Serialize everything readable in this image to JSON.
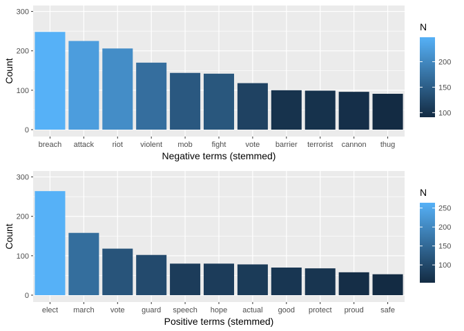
{
  "chart_data": [
    {
      "type": "bar",
      "title": "",
      "xlabel": "Negative terms (stemmed)",
      "ylabel": "Count",
      "categories": [
        "breach",
        "attack",
        "riot",
        "violent",
        "mob",
        "fight",
        "vote",
        "barrier",
        "terrorist",
        "cannon",
        "thug"
      ],
      "values": [
        248,
        225,
        206,
        170,
        144,
        142,
        118,
        100,
        99,
        96,
        91
      ],
      "ylim": [
        0,
        315
      ],
      "yticks": [
        0,
        100,
        200,
        300
      ],
      "grid": true,
      "legend": {
        "title": "N",
        "placement": "right",
        "ticks": [
          100,
          150,
          200
        ],
        "range": [
          91,
          248
        ]
      },
      "color_low": "#132B43",
      "color_high": "#56B1F7"
    },
    {
      "type": "bar",
      "title": "",
      "xlabel": "Positive terms (stemmed)",
      "ylabel": "Count",
      "categories": [
        "elect",
        "march",
        "vote",
        "guard",
        "speech",
        "hope",
        "actual",
        "good",
        "protect",
        "proud",
        "safe"
      ],
      "values": [
        264,
        158,
        118,
        102,
        80,
        80,
        78,
        70,
        68,
        58,
        53
      ],
      "ylim": [
        0,
        315
      ],
      "yticks": [
        0,
        100,
        200,
        300
      ],
      "grid": true,
      "legend": {
        "title": "N",
        "placement": "right",
        "ticks": [
          100,
          150,
          200,
          250
        ],
        "range": [
          53,
          264
        ]
      },
      "color_low": "#132B43",
      "color_high": "#56B1F7"
    }
  ],
  "colors": {
    "panel_background": "#EBEBEB",
    "grid": "#FFFFFF",
    "tick_text": "#4D4D4D"
  }
}
